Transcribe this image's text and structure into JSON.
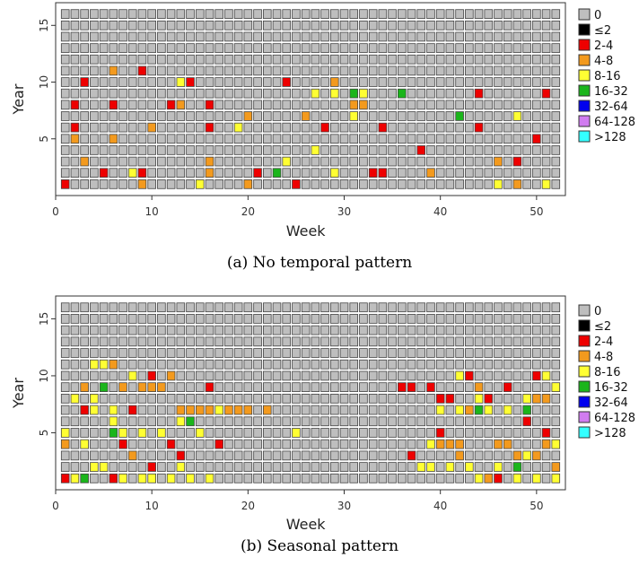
{
  "chart_data": [
    {
      "type": "heatmap",
      "caption": "(a) No temporal pattern",
      "xlabel": "Week",
      "ylabel": "Year",
      "xlim": [
        0,
        53
      ],
      "ylim": [
        0,
        17
      ],
      "x_ticks": [
        "0",
        "10",
        "20",
        "30",
        "40",
        "50"
      ],
      "y_ticks": [
        "5",
        "10",
        "15"
      ],
      "grid": false,
      "legend_position": "right",
      "default_category": "0",
      "weeks": 52,
      "years": 16,
      "cells": [
        [
          1,
          1,
          "2-4"
        ],
        [
          2,
          6,
          "2-4"
        ],
        [
          2,
          8,
          "2-4"
        ],
        [
          3,
          10,
          "2-4"
        ],
        [
          9,
          2,
          "2-4"
        ],
        [
          9,
          11,
          "2-4"
        ],
        [
          5,
          2,
          "2-4"
        ],
        [
          6,
          8,
          "2-4"
        ],
        [
          12,
          8,
          "2-4"
        ],
        [
          14,
          10,
          "2-4"
        ],
        [
          16,
          8,
          "2-4"
        ],
        [
          16,
          6,
          "2-4"
        ],
        [
          21,
          2,
          "2-4"
        ],
        [
          24,
          10,
          "2-4"
        ],
        [
          25,
          1,
          "2-4"
        ],
        [
          28,
          6,
          "2-4"
        ],
        [
          33,
          2,
          "2-4"
        ],
        [
          34,
          2,
          "2-4"
        ],
        [
          34,
          6,
          "2-4"
        ],
        [
          38,
          4,
          "2-4"
        ],
        [
          44,
          9,
          "2-4"
        ],
        [
          44,
          6,
          "2-4"
        ],
        [
          48,
          3,
          "2-4"
        ],
        [
          50,
          5,
          "2-4"
        ],
        [
          51,
          9,
          "2-4"
        ],
        [
          2,
          5,
          "4-8"
        ],
        [
          3,
          3,
          "4-8"
        ],
        [
          6,
          5,
          "4-8"
        ],
        [
          6,
          11,
          "4-8"
        ],
        [
          9,
          1,
          "4-8"
        ],
        [
          10,
          6,
          "4-8"
        ],
        [
          13,
          8,
          "4-8"
        ],
        [
          16,
          3,
          "4-8"
        ],
        [
          16,
          2,
          "4-8"
        ],
        [
          20,
          7,
          "4-8"
        ],
        [
          20,
          1,
          "4-8"
        ],
        [
          26,
          7,
          "4-8"
        ],
        [
          29,
          10,
          "4-8"
        ],
        [
          31,
          8,
          "4-8"
        ],
        [
          32,
          8,
          "4-8"
        ],
        [
          39,
          2,
          "4-8"
        ],
        [
          46,
          3,
          "4-8"
        ],
        [
          48,
          1,
          "4-8"
        ],
        [
          8,
          2,
          "8-16"
        ],
        [
          13,
          10,
          "8-16"
        ],
        [
          15,
          1,
          "8-16"
        ],
        [
          19,
          6,
          "8-16"
        ],
        [
          24,
          3,
          "8-16"
        ],
        [
          27,
          9,
          "8-16"
        ],
        [
          27,
          4,
          "8-16"
        ],
        [
          29,
          9,
          "8-16"
        ],
        [
          29,
          2,
          "8-16"
        ],
        [
          31,
          7,
          "8-16"
        ],
        [
          32,
          9,
          "8-16"
        ],
        [
          46,
          1,
          "8-16"
        ],
        [
          48,
          7,
          "8-16"
        ],
        [
          51,
          1,
          "8-16"
        ],
        [
          23,
          2,
          "16-32"
        ],
        [
          31,
          9,
          "16-32"
        ],
        [
          36,
          9,
          "16-32"
        ],
        [
          42,
          7,
          "16-32"
        ]
      ]
    },
    {
      "type": "heatmap",
      "caption": "(b) Seasonal pattern",
      "xlabel": "Week",
      "ylabel": "Year",
      "xlim": [
        0,
        53
      ],
      "ylim": [
        0,
        17
      ],
      "x_ticks": [
        "0",
        "10",
        "20",
        "30",
        "40",
        "50"
      ],
      "y_ticks": [
        "5",
        "10",
        "15"
      ],
      "grid": false,
      "legend_position": "right",
      "default_category": "0",
      "weeks": 52,
      "years": 16,
      "cells": [
        [
          1,
          1,
          "2-4"
        ],
        [
          3,
          7,
          "2-4"
        ],
        [
          6,
          1,
          "2-4"
        ],
        [
          7,
          4,
          "2-4"
        ],
        [
          8,
          7,
          "2-4"
        ],
        [
          10,
          10,
          "2-4"
        ],
        [
          10,
          2,
          "2-4"
        ],
        [
          12,
          4,
          "2-4"
        ],
        [
          13,
          3,
          "2-4"
        ],
        [
          16,
          9,
          "2-4"
        ],
        [
          17,
          4,
          "2-4"
        ],
        [
          36,
          9,
          "2-4"
        ],
        [
          37,
          9,
          "2-4"
        ],
        [
          37,
          3,
          "2-4"
        ],
        [
          39,
          9,
          "2-4"
        ],
        [
          40,
          5,
          "2-4"
        ],
        [
          40,
          8,
          "2-4"
        ],
        [
          41,
          8,
          "2-4"
        ],
        [
          43,
          10,
          "2-4"
        ],
        [
          45,
          8,
          "2-4"
        ],
        [
          46,
          1,
          "2-4"
        ],
        [
          47,
          9,
          "2-4"
        ],
        [
          49,
          6,
          "2-4"
        ],
        [
          50,
          10,
          "2-4"
        ],
        [
          51,
          5,
          "2-4"
        ],
        [
          1,
          4,
          "4-8"
        ],
        [
          3,
          9,
          "4-8"
        ],
        [
          5,
          9,
          "4-8"
        ],
        [
          6,
          11,
          "4-8"
        ],
        [
          7,
          9,
          "4-8"
        ],
        [
          8,
          3,
          "4-8"
        ],
        [
          9,
          9,
          "4-8"
        ],
        [
          10,
          9,
          "4-8"
        ],
        [
          11,
          9,
          "4-8"
        ],
        [
          12,
          10,
          "4-8"
        ],
        [
          13,
          7,
          "4-8"
        ],
        [
          14,
          7,
          "4-8"
        ],
        [
          15,
          7,
          "4-8"
        ],
        [
          16,
          7,
          "4-8"
        ],
        [
          18,
          7,
          "4-8"
        ],
        [
          19,
          7,
          "4-8"
        ],
        [
          20,
          7,
          "4-8"
        ],
        [
          22,
          7,
          "4-8"
        ],
        [
          40,
          4,
          "4-8"
        ],
        [
          41,
          4,
          "4-8"
        ],
        [
          42,
          4,
          "4-8"
        ],
        [
          42,
          3,
          "4-8"
        ],
        [
          43,
          7,
          "4-8"
        ],
        [
          44,
          9,
          "4-8"
        ],
        [
          45,
          1,
          "4-8"
        ],
        [
          46,
          4,
          "4-8"
        ],
        [
          47,
          4,
          "4-8"
        ],
        [
          48,
          3,
          "4-8"
        ],
        [
          50,
          3,
          "4-8"
        ],
        [
          50,
          8,
          "4-8"
        ],
        [
          51,
          4,
          "4-8"
        ],
        [
          51,
          8,
          "4-8"
        ],
        [
          52,
          2,
          "4-8"
        ],
        [
          1,
          5,
          "8-16"
        ],
        [
          2,
          1,
          "8-16"
        ],
        [
          2,
          8,
          "8-16"
        ],
        [
          3,
          1,
          "8-16"
        ],
        [
          3,
          4,
          "8-16"
        ],
        [
          4,
          2,
          "8-16"
        ],
        [
          4,
          7,
          "8-16"
        ],
        [
          4,
          8,
          "8-16"
        ],
        [
          4,
          11,
          "8-16"
        ],
        [
          5,
          11,
          "8-16"
        ],
        [
          5,
          2,
          "8-16"
        ],
        [
          6,
          6,
          "8-16"
        ],
        [
          6,
          7,
          "8-16"
        ],
        [
          7,
          5,
          "8-16"
        ],
        [
          7,
          1,
          "8-16"
        ],
        [
          8,
          10,
          "8-16"
        ],
        [
          9,
          5,
          "8-16"
        ],
        [
          9,
          1,
          "8-16"
        ],
        [
          10,
          1,
          "8-16"
        ],
        [
          11,
          5,
          "8-16"
        ],
        [
          12,
          1,
          "8-16"
        ],
        [
          13,
          2,
          "8-16"
        ],
        [
          13,
          6,
          "8-16"
        ],
        [
          14,
          1,
          "8-16"
        ],
        [
          15,
          5,
          "8-16"
        ],
        [
          16,
          1,
          "8-16"
        ],
        [
          17,
          7,
          "8-16"
        ],
        [
          25,
          5,
          "8-16"
        ],
        [
          38,
          2,
          "8-16"
        ],
        [
          39,
          4,
          "8-16"
        ],
        [
          39,
          2,
          "8-16"
        ],
        [
          40,
          7,
          "8-16"
        ],
        [
          41,
          2,
          "8-16"
        ],
        [
          42,
          10,
          "8-16"
        ],
        [
          42,
          7,
          "8-16"
        ],
        [
          43,
          2,
          "8-16"
        ],
        [
          44,
          8,
          "8-16"
        ],
        [
          44,
          1,
          "8-16"
        ],
        [
          45,
          7,
          "8-16"
        ],
        [
          46,
          2,
          "8-16"
        ],
        [
          47,
          7,
          "8-16"
        ],
        [
          48,
          1,
          "8-16"
        ],
        [
          49,
          8,
          "8-16"
        ],
        [
          49,
          3,
          "8-16"
        ],
        [
          50,
          1,
          "8-16"
        ],
        [
          51,
          10,
          "8-16"
        ],
        [
          52,
          9,
          "8-16"
        ],
        [
          52,
          4,
          "8-16"
        ],
        [
          52,
          1,
          "8-16"
        ],
        [
          3,
          1,
          "16-32"
        ],
        [
          5,
          9,
          "16-32"
        ],
        [
          6,
          5,
          "16-32"
        ],
        [
          14,
          6,
          "16-32"
        ],
        [
          44,
          7,
          "16-32"
        ],
        [
          48,
          2,
          "16-32"
        ],
        [
          49,
          7,
          "16-32"
        ]
      ]
    }
  ],
  "legend": {
    "categories": [
      "0",
      "≤2",
      "2-4",
      "4-8",
      "8-16",
      "16-32",
      "32-64",
      "64-128",
      ">128"
    ],
    "colors": [
      "#bebebe",
      "#000000",
      "#ee0000",
      "#f39a1e",
      "#ffff33",
      "#1bb51b",
      "#0000ee",
      "#d17cf0",
      "#33ffff"
    ]
  }
}
